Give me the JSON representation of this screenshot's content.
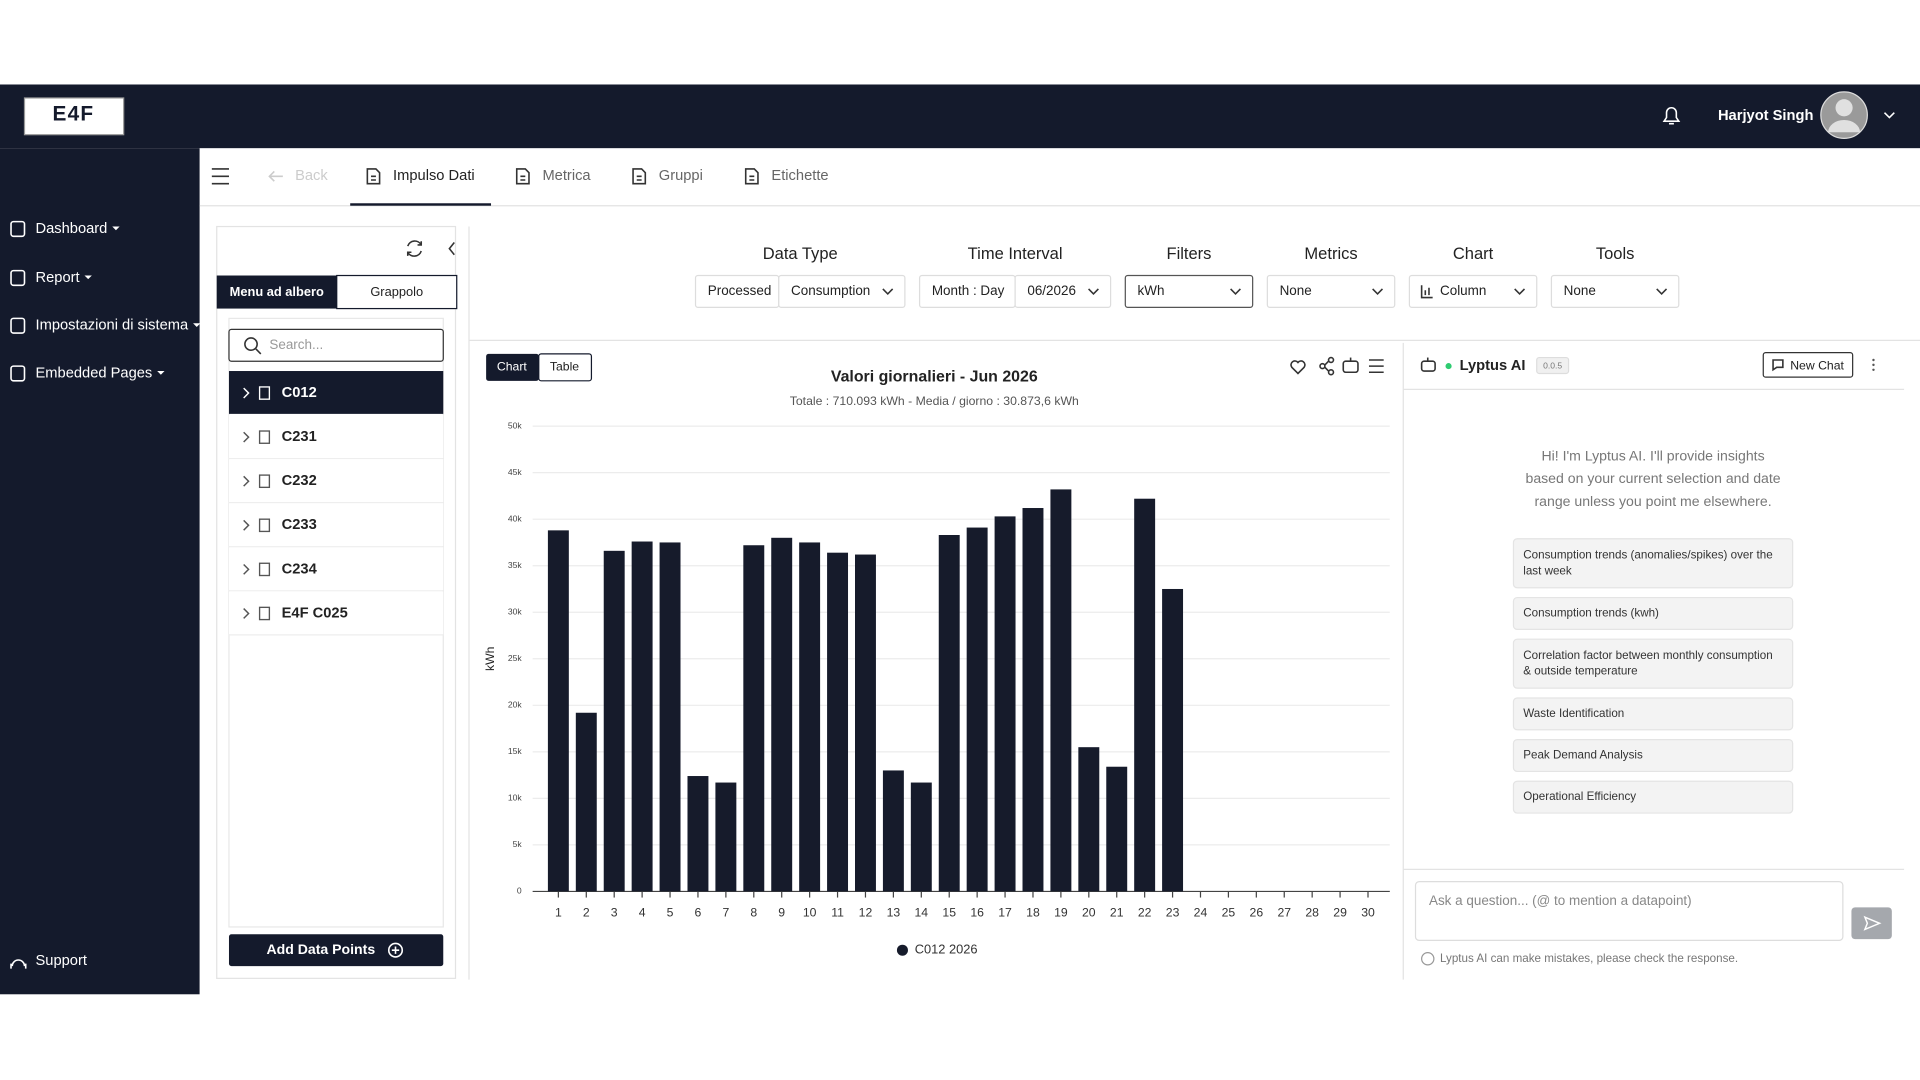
{
  "navbar": {
    "logo": "E4F",
    "user": "Harjyot Singh"
  },
  "sidebar": {
    "items": [
      "Dashboard",
      "Report",
      "Impostazioni di sistema",
      "Embedded Pages"
    ],
    "support": "Support"
  },
  "tabs": {
    "back": "Back",
    "items": [
      "Impulso Dati",
      "Metrica",
      "Gruppi",
      "Etichette"
    ]
  },
  "tree_panel": {
    "toggle": [
      "Menu ad albero",
      "Grappolo"
    ],
    "search_placeholder": "Search...",
    "items": [
      "C012",
      "C231",
      "C232",
      "C233",
      "C234",
      "E4F C025"
    ],
    "button": "Add Data Points"
  },
  "filters": [
    {
      "label": "Data Type",
      "controls": [
        "Processed",
        "Consumption"
      ]
    },
    {
      "label": "Time Interval",
      "controls": [
        "Month : Day",
        "06/2026"
      ]
    },
    {
      "label": "Filters",
      "controls": [
        "kWh"
      ]
    },
    {
      "label": "Metrics",
      "controls": [
        "None"
      ]
    },
    {
      "label": "Chart",
      "controls": [
        "Column"
      ]
    },
    {
      "label": "Tools",
      "controls": [
        "None"
      ]
    }
  ],
  "view_toggle": [
    "Chart",
    "Table"
  ],
  "chart_data": {
    "type": "bar",
    "title": "Valori giornalieri - Jun 2026",
    "subtitle": "Totale : 710.093 kWh - Media / giorno : 30.873,6 kWh",
    "y_label": "kWh",
    "categories": [
      "1",
      "2",
      "3",
      "4",
      "5",
      "6",
      "7",
      "8",
      "9",
      "10",
      "11",
      "12",
      "13",
      "14",
      "15",
      "16",
      "17",
      "18",
      "19",
      "20",
      "21",
      "22",
      "23",
      "24",
      "25",
      "26",
      "27",
      "28",
      "29",
      "30"
    ],
    "series": [
      {
        "name": "C012 2026",
        "color": "#161b2b",
        "values": [
          38800,
          19200,
          36600,
          37600,
          37500,
          12400,
          11700,
          37200,
          38000,
          37500,
          36400,
          36200,
          13000,
          11700,
          38300,
          39100,
          40300,
          41200,
          43200,
          15500,
          13400,
          42200,
          32500,
          null,
          null,
          null,
          null,
          null,
          null,
          null
        ]
      }
    ],
    "ylim": [
      0,
      50000
    ],
    "yticks": [
      0,
      {
        "value": 5000,
        "label": "5k"
      },
      {
        "value": 10000,
        "label": "10k"
      },
      {
        "value": 15000,
        "label": "15k"
      },
      {
        "value": 20000,
        "label": "20k"
      },
      {
        "value": 25000,
        "label": "25k"
      },
      {
        "value": 30000,
        "label": "30k"
      },
      {
        "value": 35000,
        "label": "35k"
      },
      {
        "value": 40000,
        "label": "40k"
      },
      {
        "value": 45000,
        "label": "45k"
      },
      {
        "value": 50000,
        "label": "50k"
      }
    ],
    "grid": true
  },
  "ai_panel": {
    "title": "Lyptus AI",
    "version": "0.0.5",
    "new_chat": "New Chat",
    "intro": [
      "Hi! I'm Lyptus AI. I'll provide insights",
      "based on your current selection and date",
      "range unless you point me elsewhere."
    ],
    "suggestions": [
      [
        "Consumption trends (anomalies/spikes) over the",
        "last week"
      ],
      [
        "Consumption trends (kwh)"
      ],
      [
        "Correlation factor between monthly consumption",
        "& outside temperature"
      ],
      [
        "Waste Identification"
      ],
      [
        "Peak Demand Analysis"
      ],
      [
        "Operational Efficiency"
      ]
    ],
    "input_placeholder": "Ask a question... (@ to mention a datapoint)",
    "disclaimer": "Lyptus AI can make mistakes, please check the response."
  }
}
